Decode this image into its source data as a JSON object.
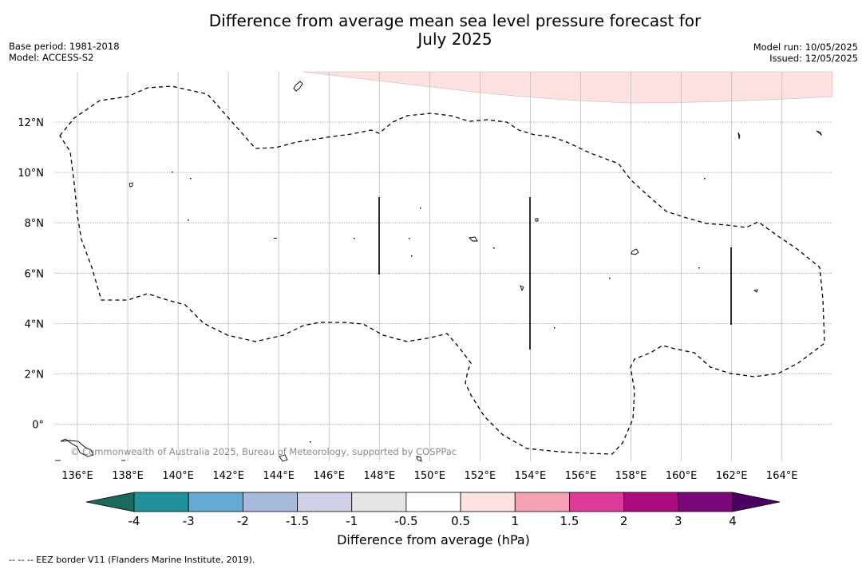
{
  "header": {
    "title_line1": "Difference from average mean sea level pressure forecast for",
    "title_line2": "July 2025",
    "base_period": "Base period: 1981-2018",
    "model": "Model: ACCESS-S2",
    "model_run": "Model run: 10/05/2025",
    "issued": "Issued: 12/05/2025"
  },
  "map": {
    "lon_labels": [
      "136°E",
      "138°E",
      "140°E",
      "142°E",
      "144°E",
      "146°E",
      "148°E",
      "150°E",
      "152°E",
      "154°E",
      "156°E",
      "158°E",
      "160°E",
      "162°E",
      "164°E"
    ],
    "lat_labels": [
      "12°N",
      "10°N",
      "8°N",
      "6°N",
      "4°N",
      "2°N",
      "0°"
    ],
    "copyright": "© Commonwealth of Australia 2025, Bureau of Meteorology, supported by COSPPac",
    "anomaly_region_color": "#fde0e0",
    "anomaly_region_class": "0.5 to 1 hPa"
  },
  "colorbar": {
    "title": "Difference from average (hPa)",
    "tick_labels": [
      "-4",
      "-3",
      "-2",
      "-1.5",
      "-1",
      "-0.5",
      "0.5",
      "1",
      "1.5",
      "2",
      "3",
      "4"
    ],
    "colors": [
      "#1a6b5e",
      "#20939a",
      "#66a9d2",
      "#a8b9dc",
      "#cfcfe6",
      "#e6e6e6",
      "#ffffff",
      "#fde0e0",
      "#f5a0b4",
      "#de3a9a",
      "#ad0a7e",
      "#7b0878",
      "#490060"
    ]
  },
  "footer": {
    "legend_text": "--  --  -- EEZ border V11 (Flanders Marine Institute, 2019)."
  }
}
